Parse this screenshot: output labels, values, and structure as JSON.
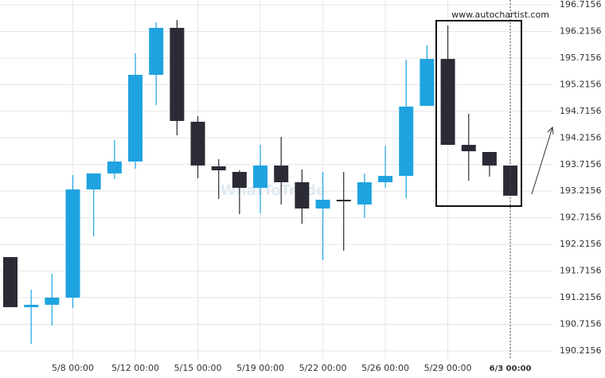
{
  "chart_data": {
    "type": "candlestick",
    "source": "www.autochartist.com",
    "watermark": "WhatToTrade",
    "categories": [
      null,
      null,
      null,
      "5/8 00:00",
      null,
      null,
      "5/12 00:00",
      null,
      null,
      "5/15 00:00",
      null,
      null,
      "5/19 00:00",
      null,
      null,
      "5/22 00:00",
      null,
      null,
      "5/26 00:00",
      null,
      null,
      "5/29 00:00",
      null,
      null,
      "6/3 00:00"
    ],
    "open": [
      191.978,
      191.037,
      191.082,
      191.216,
      193.248,
      193.548,
      193.772,
      195.4,
      196.282,
      194.519,
      193.682,
      193.577,
      193.278,
      193.697,
      193.383,
      192.89,
      193.054,
      192.965,
      193.383,
      193.502,
      194.818,
      195.699,
      194.085,
      193.951,
      193.697
    ],
    "high": [
      191.978,
      191.366,
      191.665,
      193.518,
      193.548,
      194.175,
      195.804,
      196.387,
      196.432,
      194.623,
      193.816,
      193.607,
      194.085,
      194.235,
      193.622,
      193.577,
      193.577,
      193.547,
      194.07,
      195.684,
      195.953,
      196.327,
      194.668,
      193.951,
      193.697
    ],
    "low": [
      191.037,
      190.35,
      190.693,
      191.022,
      192.367,
      193.443,
      193.637,
      194.833,
      194.265,
      193.458,
      193.069,
      192.785,
      192.8,
      192.965,
      192.606,
      191.918,
      192.098,
      192.711,
      193.278,
      193.084,
      194.818,
      194.085,
      193.413,
      193.488,
      193.13
    ],
    "close": [
      191.037,
      191.082,
      191.216,
      193.248,
      193.548,
      193.772,
      195.4,
      196.282,
      194.534,
      193.697,
      193.607,
      193.278,
      193.697,
      193.383,
      192.89,
      193.054,
      193.024,
      193.383,
      193.502,
      194.803,
      195.699,
      194.085,
      193.965,
      193.697,
      193.13
    ],
    "up_color": "#1fa3e0",
    "down_color": "#2a2b35",
    "ylim": [
      190.0656,
      196.7156
    ],
    "yticks": [
      190.2156,
      190.7156,
      191.2156,
      191.7156,
      192.2156,
      192.7156,
      193.2156,
      193.7156,
      194.2156,
      194.7156,
      195.2156,
      195.7156,
      196.2156,
      196.7156
    ],
    "grid": true
  }
}
